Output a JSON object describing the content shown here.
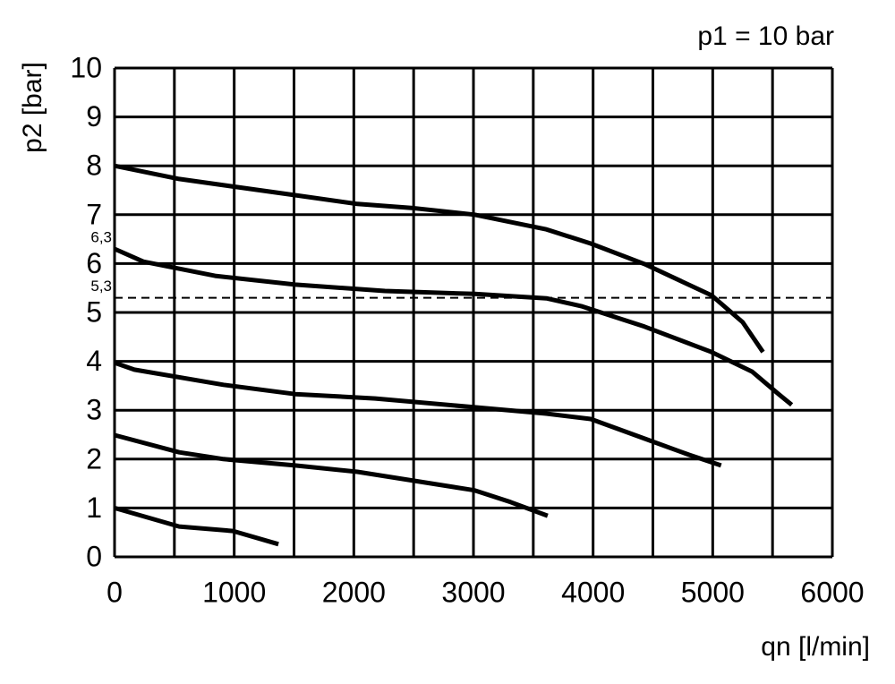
{
  "chart_data": {
    "type": "line",
    "title": "p1 = 10 bar",
    "ylabel": "p2 [bar]",
    "xlabel": "qn [l/min]",
    "xlim": [
      0,
      6000
    ],
    "xticks": [
      0,
      1000,
      2000,
      3000,
      4000,
      5000,
      6000
    ],
    "x_minor_ticks": [
      500,
      1500,
      2500,
      3500,
      4500,
      5500
    ],
    "ylim": [
      0,
      10
    ],
    "yticks": [
      0,
      1,
      2,
      3,
      4,
      5,
      6,
      7,
      8,
      9,
      10
    ],
    "extra_yticks": [
      {
        "value": 6.3,
        "label": "6,3"
      },
      {
        "value": 5.3,
        "label": "5,3"
      }
    ],
    "dashed_line": 5.3,
    "grid": true,
    "series": [
      {
        "color": "#000000",
        "x": [
          0,
          540,
          1510,
          2030,
          2480,
          3010,
          3610,
          3980,
          4430,
          4990,
          5250,
          5420
        ],
        "values": [
          8.0,
          7.73,
          7.4,
          7.22,
          7.14,
          7.0,
          6.7,
          6.41,
          5.99,
          5.35,
          4.8,
          4.19
        ]
      },
      {
        "color": "#000000",
        "x": [
          0,
          240,
          840,
          1510,
          2260,
          3010,
          3610,
          3900,
          4430,
          4990,
          5330,
          5550,
          5660
        ],
        "values": [
          6.3,
          6.04,
          5.75,
          5.57,
          5.44,
          5.38,
          5.29,
          5.13,
          4.71,
          4.19,
          3.79,
          3.33,
          3.11
        ]
      },
      {
        "color": "#000000",
        "x": [
          0,
          165,
          910,
          1510,
          2180,
          3010,
          3610,
          3980,
          4430,
          4800,
          5070
        ],
        "values": [
          3.97,
          3.83,
          3.52,
          3.33,
          3.24,
          3.06,
          2.93,
          2.82,
          2.42,
          2.09,
          1.87
        ]
      },
      {
        "color": "#000000",
        "x": [
          0,
          540,
          910,
          1510,
          2030,
          3010,
          3310,
          3620
        ],
        "values": [
          2.49,
          2.14,
          2.0,
          1.87,
          1.74,
          1.36,
          1.12,
          0.84
        ]
      },
      {
        "color": "#000000",
        "x": [
          0,
          540,
          990,
          1370
        ],
        "values": [
          1.0,
          0.62,
          0.53,
          0.26
        ]
      }
    ]
  }
}
